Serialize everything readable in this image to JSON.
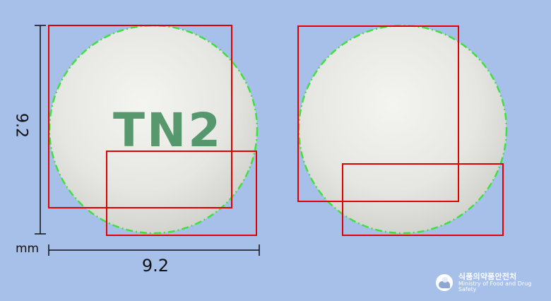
{
  "dimensions": {
    "height": "9.2",
    "width": "9.2",
    "unit": "mm"
  },
  "pill_front": {
    "imprint": "TN2"
  },
  "pill_back": {
    "imprint": ""
  },
  "logo": {
    "ko": "식품의약품안전처",
    "en": "Ministry of Food and Drug Safety"
  },
  "colors": {
    "background": "#a7c0ea",
    "pill": "#e8e8e4",
    "imprint": "#4f9467",
    "annotation_box": "#e00000",
    "contour": "#3ee03e",
    "logo": "#ffffff"
  }
}
